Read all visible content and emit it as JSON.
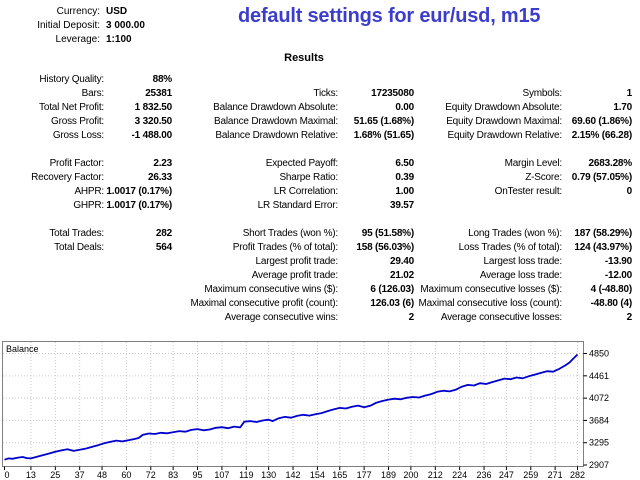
{
  "header": {
    "info": [
      {
        "label": "Currency:",
        "value": "USD"
      },
      {
        "label": "Initial Deposit:",
        "value": "3 000.00"
      },
      {
        "label": "Leverage:",
        "value": "1:100"
      }
    ],
    "title": "default settings for eur/usd, m15",
    "title_color": "#3c3ecb"
  },
  "results": {
    "heading": "Results",
    "sections": [
      [
        [
          "History Quality:",
          "88%",
          "",
          "",
          "",
          ""
        ],
        [
          "Bars:",
          "25381",
          "Ticks:",
          "17235080",
          "Symbols:",
          "1"
        ],
        [
          "Total Net Profit:",
          "1 832.50",
          "Balance Drawdown Absolute:",
          "0.00",
          "Equity Drawdown Absolute:",
          "1.70"
        ],
        [
          "Gross Profit:",
          "3 320.50",
          "Balance Drawdown Maximal:",
          "51.65 (1.68%)",
          "Equity Drawdown Maximal:",
          "69.60 (1.86%)"
        ],
        [
          "Gross Loss:",
          "-1 488.00",
          "Balance Drawdown Relative:",
          "1.68% (51.65)",
          "Equity Drawdown Relative:",
          "2.15% (66.28)"
        ]
      ],
      [
        [
          "Profit Factor:",
          "2.23",
          "Expected Payoff:",
          "6.50",
          "Margin Level:",
          "2683.28%"
        ],
        [
          "Recovery Factor:",
          "26.33",
          "Sharpe Ratio:",
          "0.39",
          "Z-Score:",
          "0.79 (57.05%)"
        ],
        [
          "AHPR:",
          "1.0017 (0.17%)",
          "LR Correlation:",
          "1.00",
          "OnTester result:",
          "0"
        ],
        [
          "GHPR:",
          "1.0017 (0.17%)",
          "LR Standard Error:",
          "39.57",
          "",
          ""
        ]
      ],
      [
        [
          "Total Trades:",
          "282",
          "Short Trades (won %):",
          "95 (51.58%)",
          "Long Trades (won %):",
          "187 (58.29%)"
        ],
        [
          "Total Deals:",
          "564",
          "Profit Trades (% of total):",
          "158 (56.03%)",
          "Loss Trades (% of total):",
          "124 (43.97%)"
        ],
        [
          "",
          "",
          "Largest profit trade:",
          "29.40",
          "Largest loss trade:",
          "-13.90"
        ],
        [
          "",
          "",
          "Average profit trade:",
          "21.02",
          "Average loss trade:",
          "-12.00"
        ],
        [
          "",
          "",
          "Maximum consecutive wins ($):",
          "6 (126.03)",
          "Maximum consecutive losses ($):",
          "4 (-48.80)"
        ],
        [
          "",
          "",
          "Maximal consecutive profit (count):",
          "126.03 (6)",
          "Maximal consecutive loss (count):",
          "-48.80 (4)"
        ],
        [
          "",
          "",
          "Average consecutive wins:",
          "2",
          "Average consecutive losses:",
          "2"
        ]
      ]
    ]
  },
  "chart_data": {
    "type": "line",
    "title": "Balance",
    "x_ticks": [
      0,
      13,
      25,
      37,
      48,
      60,
      72,
      83,
      95,
      107,
      119,
      130,
      142,
      154,
      165,
      177,
      189,
      200,
      212,
      224,
      236,
      247,
      259,
      271,
      282
    ],
    "y_ticks": [
      2907,
      3295,
      3684,
      4072,
      4461,
      4850
    ],
    "xlim": [
      0,
      282
    ],
    "ylim": [
      2907,
      5050
    ],
    "grid": "dotted",
    "line_color": "#0000cc",
    "grid_color": "#c9c9c9",
    "border_color": "#808080",
    "series": [
      {
        "name": "Balance",
        "points": [
          [
            0,
            3000
          ],
          [
            2,
            3022
          ],
          [
            4,
            3015
          ],
          [
            7,
            3038
          ],
          [
            9,
            3046
          ],
          [
            11,
            3028
          ],
          [
            13,
            3022
          ],
          [
            16,
            3052
          ],
          [
            19,
            3080
          ],
          [
            22,
            3108
          ],
          [
            25,
            3138
          ],
          [
            28,
            3162
          ],
          [
            31,
            3182
          ],
          [
            34,
            3152
          ],
          [
            37,
            3172
          ],
          [
            40,
            3192
          ],
          [
            43,
            3222
          ],
          [
            46,
            3252
          ],
          [
            49,
            3285
          ],
          [
            52,
            3310
          ],
          [
            55,
            3332
          ],
          [
            58,
            3318
          ],
          [
            61,
            3340
          ],
          [
            64,
            3360
          ],
          [
            66,
            3378
          ],
          [
            68,
            3432
          ],
          [
            71,
            3456
          ],
          [
            74,
            3448
          ],
          [
            77,
            3468
          ],
          [
            80,
            3460
          ],
          [
            83,
            3478
          ],
          [
            86,
            3498
          ],
          [
            89,
            3488
          ],
          [
            92,
            3518
          ],
          [
            95,
            3532
          ],
          [
            98,
            3512
          ],
          [
            101,
            3526
          ],
          [
            104,
            3556
          ],
          [
            107,
            3566
          ],
          [
            110,
            3548
          ],
          [
            113,
            3576
          ],
          [
            116,
            3562
          ],
          [
            118,
            3662
          ],
          [
            121,
            3672
          ],
          [
            124,
            3656
          ],
          [
            127,
            3682
          ],
          [
            130,
            3696
          ],
          [
            132,
            3672
          ],
          [
            135,
            3722
          ],
          [
            138,
            3746
          ],
          [
            141,
            3732
          ],
          [
            144,
            3762
          ],
          [
            147,
            3782
          ],
          [
            150,
            3768
          ],
          [
            153,
            3792
          ],
          [
            156,
            3812
          ],
          [
            159,
            3846
          ],
          [
            162,
            3876
          ],
          [
            165,
            3902
          ],
          [
            168,
            3892
          ],
          [
            171,
            3922
          ],
          [
            174,
            3942
          ],
          [
            177,
            3912
          ],
          [
            180,
            3938
          ],
          [
            183,
            3992
          ],
          [
            186,
            4022
          ],
          [
            189,
            4046
          ],
          [
            192,
            4062
          ],
          [
            195,
            4052
          ],
          [
            198,
            4078
          ],
          [
            201,
            4092
          ],
          [
            204,
            4084
          ],
          [
            207,
            4116
          ],
          [
            210,
            4142
          ],
          [
            213,
            4182
          ],
          [
            216,
            4202
          ],
          [
            219,
            4190
          ],
          [
            222,
            4218
          ],
          [
            225,
            4272
          ],
          [
            228,
            4302
          ],
          [
            231,
            4292
          ],
          [
            234,
            4332
          ],
          [
            237,
            4318
          ],
          [
            240,
            4352
          ],
          [
            243,
            4382
          ],
          [
            246,
            4412
          ],
          [
            249,
            4402
          ],
          [
            252,
            4432
          ],
          [
            255,
            4418
          ],
          [
            258,
            4452
          ],
          [
            261,
            4482
          ],
          [
            264,
            4512
          ],
          [
            267,
            4542
          ],
          [
            270,
            4532
          ],
          [
            273,
            4582
          ],
          [
            276,
            4642
          ],
          [
            278,
            4692
          ],
          [
            280,
            4762
          ],
          [
            282,
            4832.5
          ]
        ]
      }
    ]
  }
}
